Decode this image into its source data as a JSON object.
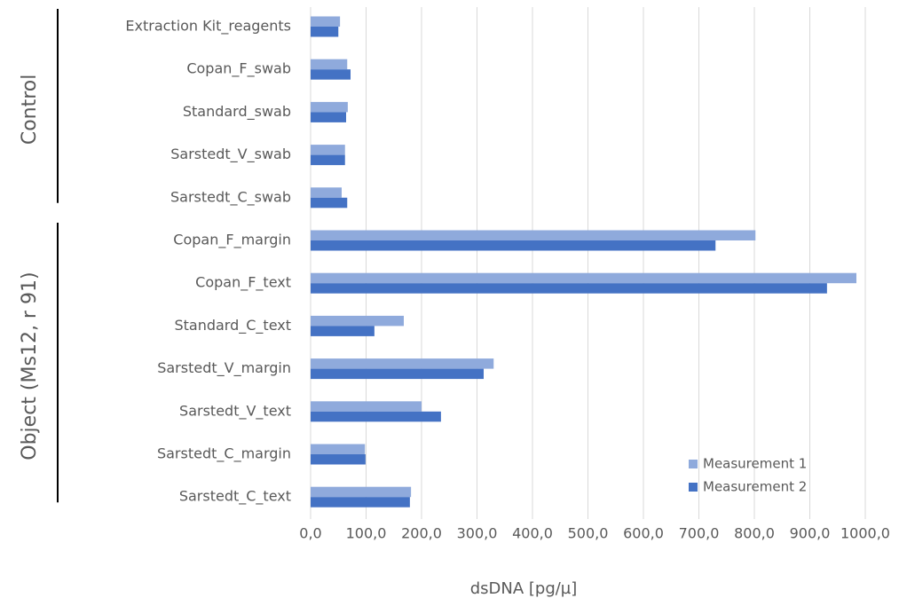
{
  "chart_data": {
    "type": "bar",
    "orientation": "horizontal",
    "categories": [
      "Extraction Kit_reagents",
      "Copan_F_swab",
      "Standard_swab",
      "Sarstedt_V_swab",
      "Sarstedt_C_swab",
      "Copan_F_margin",
      "Copan_F_text",
      "Standard_C_text",
      "Sarstedt_V_margin",
      "Sarstedt_V_text",
      "Sarstedt_C_margin",
      "Sarstedt_C_text"
    ],
    "group_labels": [
      "Control",
      "Object (Ms12, r 91)"
    ],
    "series": [
      {
        "name": "Measurement 1",
        "color": "#8faadc",
        "values": [
          53,
          66,
          67,
          62,
          56,
          802,
          984,
          168,
          330,
          200,
          98,
          181
        ]
      },
      {
        "name": "Measurement 2",
        "color": "#4472c4",
        "values": [
          50,
          72,
          64,
          62,
          66,
          730,
          931,
          115,
          312,
          235,
          99,
          179
        ]
      }
    ],
    "x_label": "dsDNA [pg/µ]",
    "xlim": [
      0,
      1000
    ],
    "xticks": [
      {
        "value": 0,
        "label": "0,0"
      },
      {
        "value": 100,
        "label": "100,0"
      },
      {
        "value": 200,
        "label": "200,0"
      },
      {
        "value": 300,
        "label": "300,0"
      },
      {
        "value": 400,
        "label": "400,0"
      },
      {
        "value": 500,
        "label": "500,0"
      },
      {
        "value": 600,
        "label": "600,0"
      },
      {
        "value": 700,
        "label": "700,0"
      },
      {
        "value": 800,
        "label": "800,0"
      },
      {
        "value": 900,
        "label": "900,0"
      },
      {
        "value": 1000,
        "label": "1000,0"
      }
    ],
    "grid": true,
    "legend": "lower right"
  }
}
